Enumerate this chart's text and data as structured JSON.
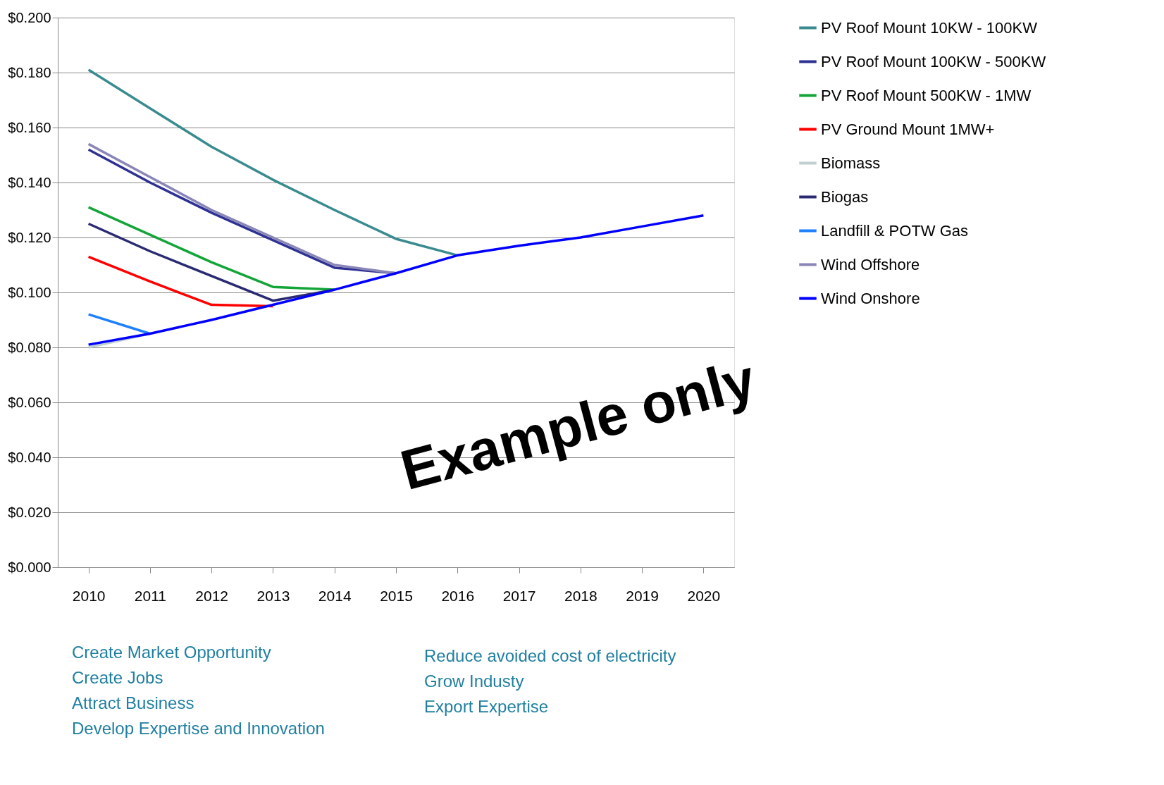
{
  "chart_data": {
    "type": "line",
    "categories": [
      "2010",
      "2011",
      "2012",
      "2013",
      "2014",
      "2015",
      "2016",
      "2017",
      "2018",
      "2019",
      "2020"
    ],
    "series": [
      {
        "name": "PV Roof Mount  10KW - 100KW",
        "color": "#3a8b8f",
        "values": [
          0.181,
          0.167,
          0.153,
          0.141,
          0.13,
          0.1195,
          0.1135,
          null,
          null,
          null,
          null
        ]
      },
      {
        "name": "PV Roof Mount 100KW - 500KW",
        "color": "#2e3192",
        "values": [
          0.152,
          0.14,
          0.129,
          0.119,
          0.109,
          0.107,
          null,
          null,
          null,
          null,
          null
        ]
      },
      {
        "name": "PV Roof Mount 500KW - 1MW",
        "color": "#13a538",
        "values": [
          0.131,
          0.121,
          0.111,
          0.102,
          0.101,
          null,
          null,
          null,
          null,
          null,
          null
        ]
      },
      {
        "name": "PV Ground Mount 1MW+",
        "color": "#ff0000",
        "values": [
          0.113,
          0.104,
          0.0955,
          0.095,
          null,
          null,
          null,
          null,
          null,
          null,
          null
        ]
      },
      {
        "name": "Biomass",
        "color": "#c0cfcf",
        "values": [
          0.08,
          0.085,
          null,
          null,
          null,
          null,
          null,
          null,
          null,
          null,
          null
        ]
      },
      {
        "name": "Biogas",
        "color": "#2a2a72",
        "values": [
          0.125,
          0.115,
          0.106,
          0.097,
          0.101,
          null,
          null,
          null,
          null,
          null,
          null
        ]
      },
      {
        "name": "Landfill & POTW Gas",
        "color": "#1e7fff",
        "values": [
          0.092,
          0.085,
          null,
          null,
          null,
          null,
          null,
          null,
          null,
          null,
          null
        ]
      },
      {
        "name": "Wind Offshore",
        "color": "#8a86b8",
        "values": [
          0.154,
          0.142,
          0.13,
          0.12,
          0.11,
          0.107,
          null,
          null,
          null,
          null,
          null
        ]
      },
      {
        "name": "Wind Onshore",
        "color": "#0000ff",
        "values": [
          0.081,
          0.085,
          0.09,
          0.0955,
          0.101,
          0.107,
          0.1135,
          0.117,
          0.12,
          0.124,
          0.128
        ]
      }
    ],
    "ylim": [
      0,
      0.2
    ],
    "yticks": [
      {
        "value": 0,
        "label": "$0.000"
      },
      {
        "value": 0.02,
        "label": "$0.020"
      },
      {
        "value": 0.04,
        "label": "$0.040"
      },
      {
        "value": 0.06,
        "label": "$0.060"
      },
      {
        "value": 0.08,
        "label": "$0.080"
      },
      {
        "value": 0.1,
        "label": "$0.100"
      },
      {
        "value": 0.12,
        "label": "$0.120"
      },
      {
        "value": 0.14,
        "label": "$0.140"
      },
      {
        "value": 0.16,
        "label": "$0.160"
      },
      {
        "value": 0.18,
        "label": "$0.180"
      },
      {
        "value": 0.2,
        "label": "$0.200"
      }
    ],
    "grid": "y",
    "legend": "right",
    "annotations": [
      "Create Market Opportunity\nCreate Jobs\nAttract Business\nDevelop Expertise and Innovation",
      "Reduce avoided cost of electricity\nGrow Industy\nExport Expertise",
      "Example only"
    ]
  }
}
